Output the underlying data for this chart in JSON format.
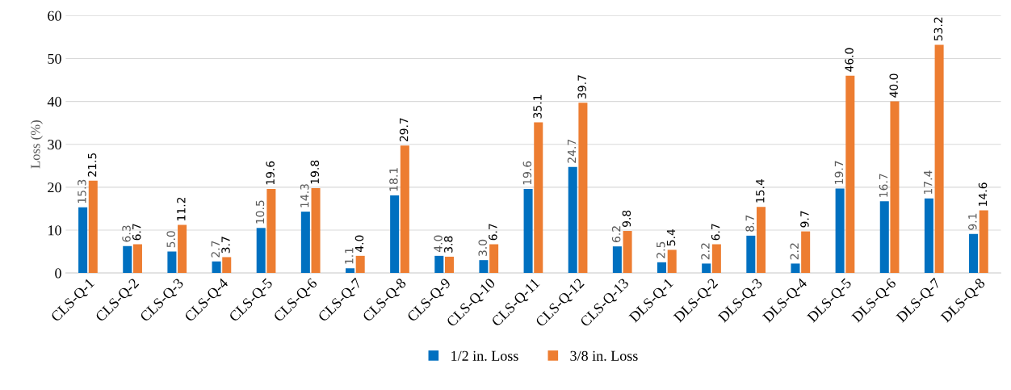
{
  "chart_data": {
    "type": "bar",
    "ylabel": "Loss (%)",
    "categories": [
      "CLS-Q-1",
      "CLS-Q-2",
      "CLS-Q-3",
      "CLS-Q-4",
      "CLS-Q-5",
      "CLS-Q-6",
      "CLS-Q-7",
      "CLS-Q-8",
      "CLS-Q-9",
      "CLS-Q-10",
      "CLS-Q-11",
      "CLS-Q-12",
      "CLS-Q-13",
      "DLS-Q-1",
      "DLS-Q-2",
      "DLS-Q-3",
      "DLS-Q-4",
      "DLS-Q-5",
      "DLS-Q-6",
      "DLS-Q-7",
      "DLS-Q-8"
    ],
    "series": [
      {
        "name": "1/2 in. Loss",
        "color": "#0070c0",
        "values": [
          15.3,
          6.3,
          5.0,
          2.7,
          10.5,
          14.3,
          1.1,
          18.1,
          4.0,
          3.0,
          19.6,
          24.7,
          6.2,
          2.5,
          2.2,
          8.7,
          2.2,
          19.7,
          16.7,
          17.4,
          9.1
        ],
        "value_labels": [
          "15.3",
          "6.3",
          "5.0",
          "2.7",
          "10.5",
          "14.3",
          "1.1",
          "18.1",
          "4.0",
          "3.0",
          "19.6",
          "24.7",
          "6.2",
          "2.5",
          "2.2",
          "8.7",
          "2.2",
          "19.7",
          "16.7",
          "17.4",
          "9.1"
        ]
      },
      {
        "name": "3/8 in. Loss",
        "color": "#ed7d31",
        "values": [
          21.5,
          6.7,
          11.2,
          3.7,
          19.6,
          19.8,
          4.0,
          29.7,
          3.8,
          6.7,
          35.1,
          39.7,
          9.8,
          5.4,
          6.7,
          15.4,
          9.7,
          46.0,
          40.0,
          53.2,
          14.6
        ],
        "value_labels": [
          "21.5",
          "6.7",
          "11.2",
          "3.7",
          "19.6",
          "19.8",
          "4.0",
          "29.7",
          "3.8",
          "6.7",
          "35.1",
          "39.7",
          "9.8",
          "5.4",
          "6.7",
          "15.4",
          "9.7",
          "46.0",
          "40.0",
          "53.2",
          "14.6"
        ]
      }
    ],
    "ylim": [
      0,
      60
    ],
    "yticks": [
      0,
      10,
      20,
      30,
      40,
      50,
      60
    ],
    "grid": "y",
    "legend": "bottom"
  }
}
